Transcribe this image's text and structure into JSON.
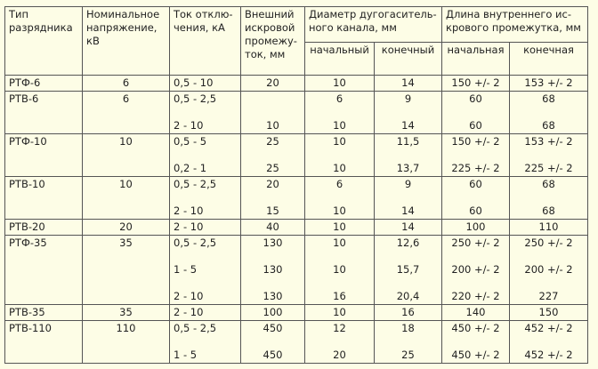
{
  "header": {
    "columns": [
      [
        "Тип",
        "разрядника"
      ],
      [
        "Номинальное",
        "напряжение,",
        "кВ"
      ],
      [
        "Ток отклю-",
        "чения, кА"
      ],
      [
        "Внешний",
        "искровой",
        "промежу-",
        "ток, мм"
      ]
    ],
    "groups": [
      {
        "label": [
          "Диаметр дугогаситель-",
          "ного канала, мм"
        ],
        "sub": [
          "начальный",
          "конечный"
        ]
      },
      {
        "label": [
          "Длина внутреннего ис-",
          "крового промежутка, мм"
        ],
        "sub": [
          "начальная",
          "конечная"
        ]
      }
    ]
  },
  "table": {
    "rows": [
      [
        [
          "РТФ-6"
        ],
        [
          "6"
        ],
        [
          "0,5 - 10"
        ],
        [
          "20"
        ],
        [
          "10"
        ],
        [
          "14"
        ],
        [
          "150 +/- 2"
        ],
        [
          "153 +/- 2"
        ]
      ],
      [
        [
          "РТВ-6"
        ],
        [
          "6"
        ],
        [
          "0,5 - 2,5",
          "2 - 10"
        ],
        [
          null,
          "10"
        ],
        [
          "6",
          "10"
        ],
        [
          "9",
          "14"
        ],
        [
          "60",
          "60"
        ],
        [
          "68",
          "68"
        ]
      ],
      [
        [
          "РТФ-10"
        ],
        [
          "10"
        ],
        [
          "0,5 - 5",
          "0,2 - 1"
        ],
        [
          "25",
          "25"
        ],
        [
          "10",
          "10"
        ],
        [
          "11,5",
          "13,7"
        ],
        [
          "150 +/- 2",
          "225 +/- 2"
        ],
        [
          "153 +/- 2",
          "225 +/- 2"
        ]
      ],
      [
        [
          "РТВ-10"
        ],
        [
          "10"
        ],
        [
          "0,5 - 2,5",
          "2 - 10"
        ],
        [
          "20",
          "15"
        ],
        [
          "6",
          "10"
        ],
        [
          "9",
          "14"
        ],
        [
          "60",
          "60"
        ],
        [
          "68",
          "68"
        ]
      ],
      [
        [
          "РТВ-20"
        ],
        [
          "20"
        ],
        [
          "2 - 10"
        ],
        [
          "40"
        ],
        [
          "10"
        ],
        [
          "14"
        ],
        [
          "100"
        ],
        [
          "110"
        ]
      ],
      [
        [
          "РТФ-35"
        ],
        [
          "35"
        ],
        [
          "0,5 - 2,5",
          "1 - 5",
          "2 - 10"
        ],
        [
          "130",
          "130",
          "130"
        ],
        [
          "10",
          "10",
          "16"
        ],
        [
          "12,6",
          "15,7",
          "20,4"
        ],
        [
          "250 +/- 2",
          "200 +/- 2",
          "220 +/- 2"
        ],
        [
          "250 +/- 2",
          "200 +/- 2",
          "227"
        ]
      ],
      [
        [
          "РТВ-35"
        ],
        [
          "35"
        ],
        [
          "2 - 10"
        ],
        [
          "100"
        ],
        [
          "10"
        ],
        [
          "16"
        ],
        [
          "140"
        ],
        [
          "150"
        ]
      ],
      [
        [
          "РТВ-110"
        ],
        [
          "110"
        ],
        [
          "0,5 - 2,5",
          "1 - 5"
        ],
        [
          "450",
          "450"
        ],
        [
          "12",
          "20"
        ],
        [
          "18",
          "25"
        ],
        [
          "450 +/- 2",
          "450 +/- 2"
        ],
        [
          "452 +/- 2",
          "452 +/- 2"
        ]
      ]
    ]
  }
}
